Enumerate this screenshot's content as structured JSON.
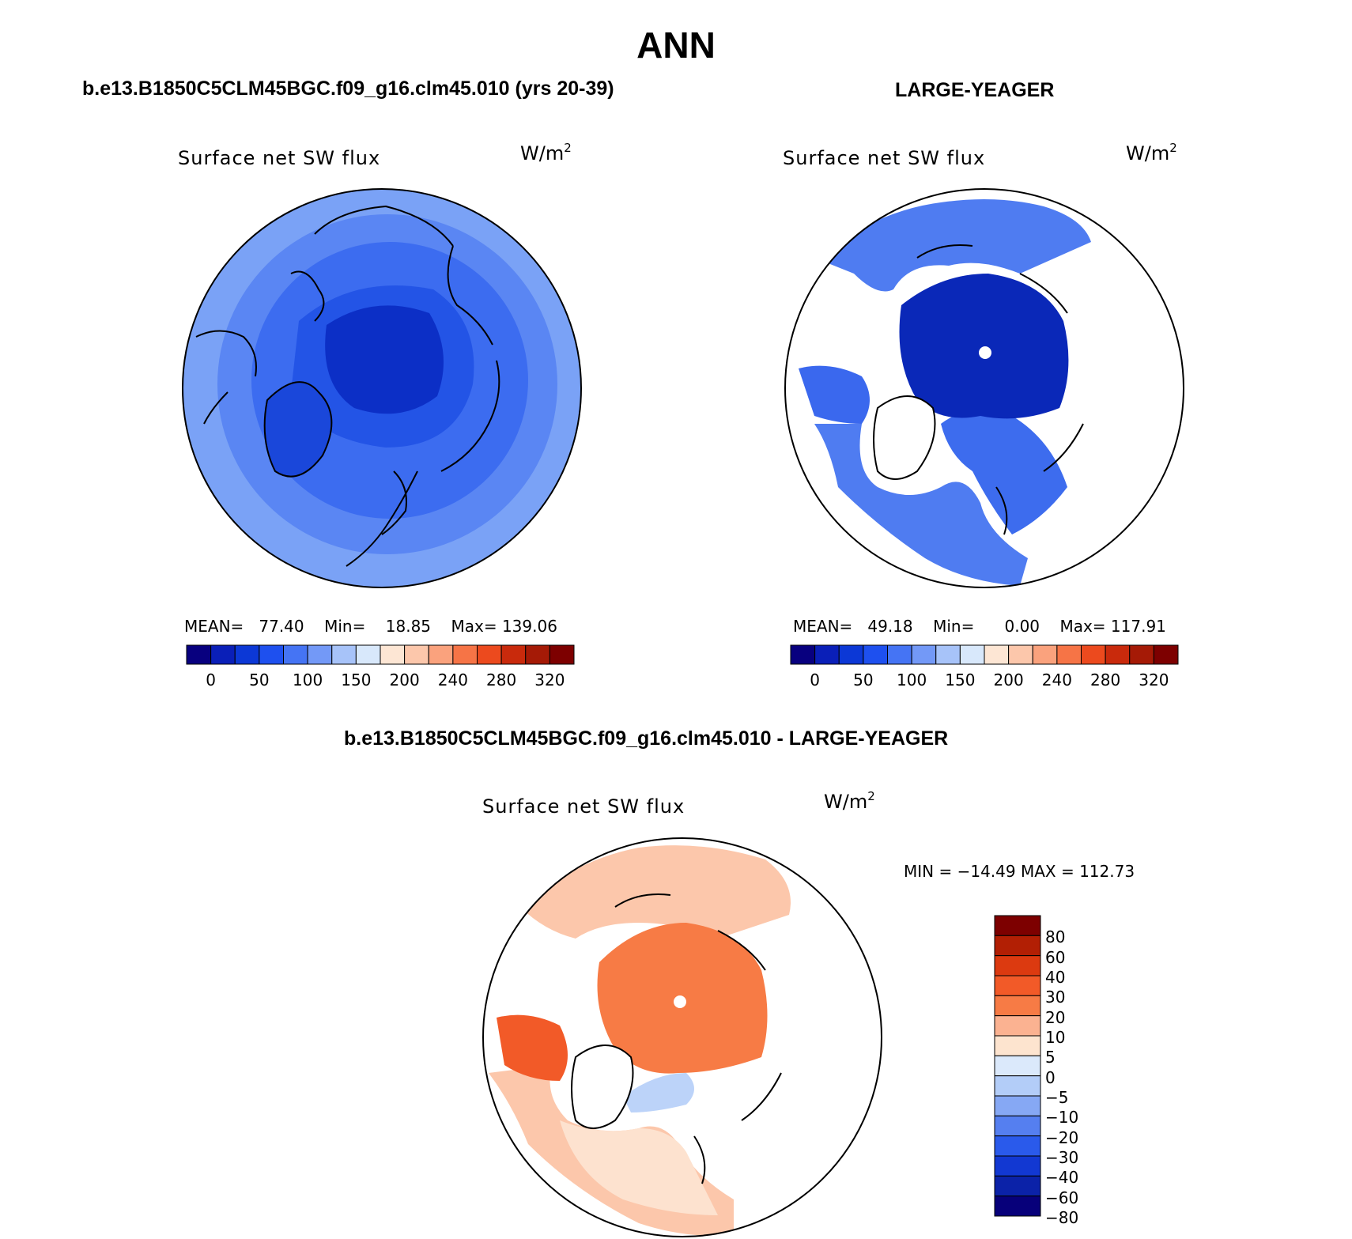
{
  "title": "ANN",
  "panels": [
    {
      "id": "model",
      "case_title": "b.e13.B1850C5CLM45BGC.f09_g16.clm45.010 (yrs 20-39)",
      "label": "Surface net SW flux",
      "unit": "W/m",
      "unit_exp": "2",
      "stats": {
        "mean_label": "MEAN=",
        "mean": "77.40",
        "min_label": "Min=",
        "min": "18.85",
        "max_label": "Max=",
        "max": "139.06"
      },
      "colorbar_ticks": [
        "0",
        "50",
        "100",
        "150",
        "200",
        "240",
        "280",
        "320"
      ]
    },
    {
      "id": "obs",
      "case_title": "LARGE-YEAGER",
      "label": "Surface net SW flux",
      "unit": "W/m",
      "unit_exp": "2",
      "stats": {
        "mean_label": "MEAN=",
        "mean": "49.18",
        "min_label": "Min=",
        "min": "0.00",
        "max_label": "Max=",
        "max": "117.91"
      },
      "colorbar_ticks": [
        "0",
        "50",
        "100",
        "150",
        "200",
        "240",
        "280",
        "320"
      ]
    },
    {
      "id": "diff",
      "case_title": "b.e13.B1850C5CLM45BGC.f09_g16.clm45.010 - LARGE-YEAGER",
      "label": "Surface net SW flux",
      "unit": "W/m",
      "unit_exp": "2",
      "minmax": "MIN = −14.49 MAX = 112.73",
      "colorbar_ticks": [
        "80",
        "60",
        "40",
        "30",
        "20",
        "10",
        "5",
        "0",
        "−5",
        "−10",
        "−20",
        "−30",
        "−40",
        "−60",
        "−80"
      ]
    }
  ],
  "colors": {
    "abs_scale": [
      "#08007f",
      "#0a1fb8",
      "#0c38d6",
      "#1e50ef",
      "#4574f4",
      "#7399f7",
      "#a7c3f9",
      "#d8e8fb",
      "#fde6d4",
      "#fcc7ab",
      "#faa27d",
      "#f67446",
      "#ec4a1e",
      "#c92a0c",
      "#a51a06",
      "#7d0000"
    ],
    "diff_scale": [
      "#7d0000",
      "#b21f04",
      "#dc3a10",
      "#f25a28",
      "#f77b45",
      "#fbb291",
      "#fde4cf",
      "#dbe9fb",
      "#b3cdf8",
      "#86a8f4",
      "#557ff0",
      "#2a5aeb",
      "#1238d2",
      "#0b22a8",
      "#07007a"
    ],
    "model_base": "#3c6cf0",
    "model_mid": "#2354e6",
    "model_core": "#0c2fc6",
    "model_outer": "#7aa2f6",
    "obs_outer": "#4f7cf1",
    "obs_core": "#0a28b8",
    "diff_main": "#f4a07a",
    "diff_strong": "#ee6a3a",
    "diff_light": "#fde2cf",
    "diff_neg": "#bcd3f9",
    "land": "#ffffff",
    "outline": "#000000"
  }
}
